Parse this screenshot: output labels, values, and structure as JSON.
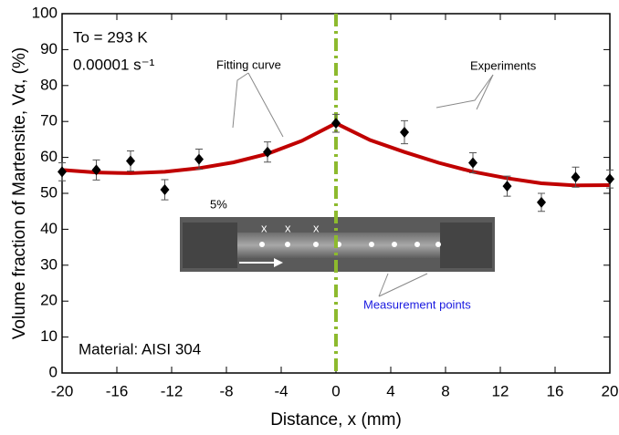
{
  "chart_data": {
    "type": "scatter",
    "x_label": "Distance, x (mm)",
    "y_label": "Volume fraction of Martensite, Vα, (%)",
    "annotations": [
      "To = 293 K",
      "0.00001 s⁻¹",
      "Fitting curve",
      "Experiments",
      "5%",
      "Material: AISI 304",
      "Measurement points"
    ],
    "inset_labels": [
      "x",
      "x",
      "x"
    ],
    "xlim": [
      -20,
      20
    ],
    "xticks": [
      -20,
      -16,
      -12,
      -8,
      -4,
      0,
      4,
      8,
      12,
      16,
      20
    ],
    "ylim": [
      0,
      100
    ],
    "yticks": [
      0,
      10,
      20,
      30,
      40,
      50,
      60,
      70,
      80,
      90,
      100
    ],
    "vline_x": 0,
    "vline_color": "#8dba2e",
    "series": [
      {
        "name": "Experiments",
        "color": "#000000",
        "x": [
          -20,
          -17.5,
          -15,
          -12.5,
          -10,
          -5,
          0,
          5,
          10,
          12.5,
          15,
          17.5,
          20
        ],
        "values": [
          56,
          56.5,
          59,
          51,
          59.5,
          61.5,
          69.5,
          67,
          58.5,
          52,
          47.5,
          54.5,
          54
        ],
        "errors": [
          2.5,
          2.8,
          2.8,
          2.8,
          2.8,
          2.8,
          2.5,
          3.2,
          2.8,
          2.8,
          2.5,
          2.8,
          2.5
        ]
      },
      {
        "name": "Fitting curve",
        "color": "#c00000",
        "x": [
          -20,
          -17.5,
          -15,
          -12.5,
          -10,
          -7.5,
          -5,
          -2.5,
          0,
          2.5,
          5,
          7.5,
          10,
          12.5,
          15,
          17.5,
          20
        ],
        "values": [
          56.5,
          55.8,
          55.6,
          56,
          57,
          58.6,
          61,
          64.6,
          69.5,
          64.8,
          61.5,
          58.5,
          56,
          54.2,
          52.8,
          52.2,
          52.3
        ]
      }
    ]
  }
}
